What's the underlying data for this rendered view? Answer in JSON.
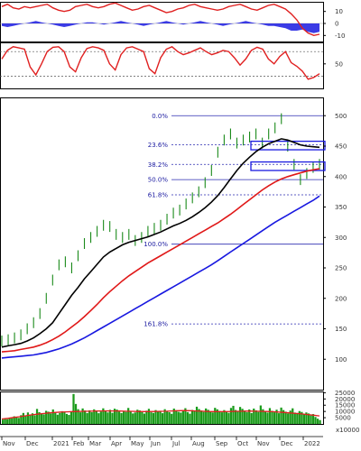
{
  "chart_data": [
    {
      "type": "line",
      "ylim": [
        -15,
        18
      ],
      "ticks": [
        10,
        0,
        -10
      ],
      "series": [
        {
          "color": "#e02020",
          "values": [
            14,
            16,
            13,
            12,
            14,
            13,
            14,
            15,
            16,
            13,
            11,
            10,
            11,
            14,
            15,
            16,
            14,
            13,
            14,
            16,
            17,
            15,
            13,
            11,
            12,
            14,
            15,
            13,
            11,
            9,
            10,
            12,
            13,
            15,
            16,
            14,
            13,
            12,
            11,
            12,
            14,
            15,
            16,
            14,
            12,
            11,
            13,
            15,
            16,
            14,
            12,
            8,
            3,
            -4,
            -8,
            -10,
            -9
          ]
        },
        {
          "color": "#1a1ae0",
          "values": [
            -2,
            -3,
            -2,
            -1,
            0,
            1,
            2,
            1,
            0,
            -1,
            -2,
            -3,
            -2,
            -1,
            0,
            1,
            1,
            0,
            -1,
            0,
            1,
            2,
            1,
            0,
            -1,
            -2,
            -1,
            0,
            1,
            2,
            1,
            0,
            -1,
            0,
            1,
            2,
            1,
            0,
            -1,
            -2,
            -1,
            0,
            1,
            2,
            1,
            0,
            -1,
            -2,
            -2,
            -3,
            -4,
            -6,
            -6,
            -5,
            -7,
            -8,
            -7
          ]
        }
      ]
    },
    {
      "type": "line",
      "ylim": [
        10,
        85
      ],
      "ticks": [
        50
      ],
      "ref_lines": [
        70,
        30
      ],
      "series": [
        {
          "color": "#e02020",
          "values": [
            58,
            72,
            78,
            76,
            74,
            45,
            32,
            50,
            70,
            77,
            78,
            70,
            45,
            37,
            60,
            75,
            78,
            76,
            72,
            50,
            40,
            65,
            76,
            78,
            74,
            70,
            42,
            34,
            60,
            74,
            78,
            70,
            65,
            68,
            72,
            76,
            70,
            65,
            68,
            72,
            70,
            60,
            48,
            58,
            72,
            77,
            74,
            58,
            50,
            62,
            70,
            52,
            46,
            38,
            25,
            28,
            34
          ]
        }
      ]
    },
    {
      "type": "line",
      "ylim": [
        50,
        530
      ],
      "ticks": [
        500,
        450,
        400,
        350,
        300,
        250,
        200,
        150,
        100
      ],
      "x_labels": [
        "Nov",
        "Dec",
        "2021",
        "Feb",
        "Mar",
        "Apr",
        "May",
        "Jun",
        "Jul",
        "Aug",
        "Sep",
        "Oct",
        "Nov",
        "Dec",
        "2022"
      ],
      "fib_levels": [
        {
          "label": "0.0%",
          "value": 500
        },
        {
          "label": "23.6%",
          "value": 452
        },
        {
          "label": "38.2%",
          "value": 420
        },
        {
          "label": "50.0%",
          "value": 395
        },
        {
          "label": "61.8%",
          "value": 370
        },
        {
          "label": "100.0%",
          "value": 289
        },
        {
          "label": "161.8%",
          "value": 158
        }
      ],
      "series": [
        {
          "color": "#1a8a1a",
          "values": [
            130,
            132,
            135,
            140,
            150,
            160,
            175,
            200,
            230,
            255,
            260,
            250,
            270,
            290,
            300,
            310,
            320,
            318,
            305,
            300,
            305,
            295,
            300,
            310,
            315,
            320,
            330,
            340,
            345,
            355,
            365,
            375,
            390,
            410,
            440,
            460,
            470,
            455,
            460,
            465,
            470,
            455,
            470,
            480,
            495,
            450,
            420,
            395,
            405,
            415,
            420
          ]
        },
        {
          "color": "#000000",
          "values": [
            120,
            122,
            124,
            126,
            130,
            135,
            142,
            150,
            160,
            175,
            190,
            205,
            218,
            232,
            244,
            256,
            268,
            276,
            282,
            288,
            292,
            295,
            298,
            301,
            305,
            309,
            314,
            319,
            323,
            328,
            334,
            341,
            349,
            358,
            369,
            382,
            396,
            410,
            422,
            432,
            441,
            448,
            454,
            458,
            462,
            460,
            456,
            452,
            450,
            449,
            448
          ]
        },
        {
          "color": "#e01818",
          "values": [
            112,
            113,
            114,
            116,
            118,
            120,
            123,
            127,
            132,
            138,
            145,
            153,
            161,
            170,
            180,
            190,
            201,
            211,
            220,
            229,
            237,
            244,
            251,
            258,
            264,
            270,
            276,
            282,
            288,
            294,
            300,
            306,
            312,
            318,
            324,
            331,
            338,
            346,
            354,
            362,
            370,
            378,
            385,
            391,
            396,
            400,
            403,
            406,
            409,
            411,
            413
          ]
        },
        {
          "color": "#1818e0",
          "values": [
            102,
            103,
            104,
            105,
            106,
            107,
            109,
            111,
            114,
            117,
            121,
            125,
            130,
            135,
            141,
            147,
            153,
            159,
            165,
            171,
            177,
            183,
            189,
            195,
            201,
            207,
            213,
            219,
            225,
            231,
            237,
            243,
            249,
            255,
            262,
            269,
            276,
            283,
            290,
            297,
            304,
            311,
            318,
            325,
            331,
            337,
            343,
            349,
            355,
            361,
            368
          ]
        }
      ]
    },
    {
      "type": "bar",
      "ylim": [
        0,
        26000
      ],
      "ticks": [
        25000,
        20000,
        15000,
        10000,
        5000
      ],
      "unit": "x10000",
      "overlay_color": "#e02020",
      "values": [
        3500,
        4200,
        3800,
        5000,
        4600,
        6100,
        5200,
        4800,
        7000,
        8800,
        6400,
        9200,
        7600,
        8500,
        6900,
        12000,
        9400,
        8100,
        7700,
        10500,
        9800,
        8300,
        11600,
        9100,
        7400,
        8800,
        10200,
        9500,
        8000,
        7200,
        9600,
        24000,
        16000,
        11800,
        9300,
        12400,
        10800,
        8700,
        10900,
        9400,
        11700,
        10300,
        8600,
        9900,
        12500,
        10700,
        9200,
        11300,
        8900,
        12200,
        11500,
        9800,
        8700,
        10400,
        9600,
        12800,
        10100,
        8400,
        9200,
        11400,
        10800,
        9500,
        8300,
        10600,
        12100,
        9300,
        8800,
        11100,
        9900,
        10500,
        8600,
        11800,
        10200,
        9400,
        8100,
        12300,
        11000,
        9700,
        9100,
        10400,
        12600,
        9500,
        8200,
        11200,
        10300,
        13800,
        11900,
        10800,
        9600,
        12400,
        11300,
        10100,
        9200,
        12900,
        11700,
        10400,
        9300,
        11100,
        10000,
        8900,
        12800,
        14500,
        11200,
        9800,
        13600,
        12100,
        10700,
        9400,
        11600,
        8700,
        12300,
        10900,
        9600,
        14800,
        11800,
        10200,
        9100,
        12700,
        10500,
        9300,
        11400,
        8600,
        13100,
        11100,
        9800,
        8400,
        10700,
        12500,
        9100,
        8800,
        10300,
        9600,
        7800,
        9200,
        8400,
        6800,
        7900,
        5600,
        4200,
        3100
      ],
      "overlay": [
        4000,
        4500,
        5200,
        5800,
        6500,
        7200,
        7800,
        8300,
        8800,
        9200,
        9500,
        9700,
        9900,
        10000,
        10100,
        10200,
        10300,
        10400,
        10500,
        10400,
        10300,
        10200,
        10100,
        10000,
        9900,
        9900,
        10000,
        10100,
        10200,
        10400,
        10600,
        10700,
        10600,
        10400,
        10200,
        10000,
        9900,
        9800,
        9900,
        10000,
        10100,
        10200,
        10300,
        10200,
        10100,
        10000,
        9800,
        9500,
        9200,
        8800,
        8400,
        8000,
        7500,
        7000,
        6400
      ]
    }
  ]
}
